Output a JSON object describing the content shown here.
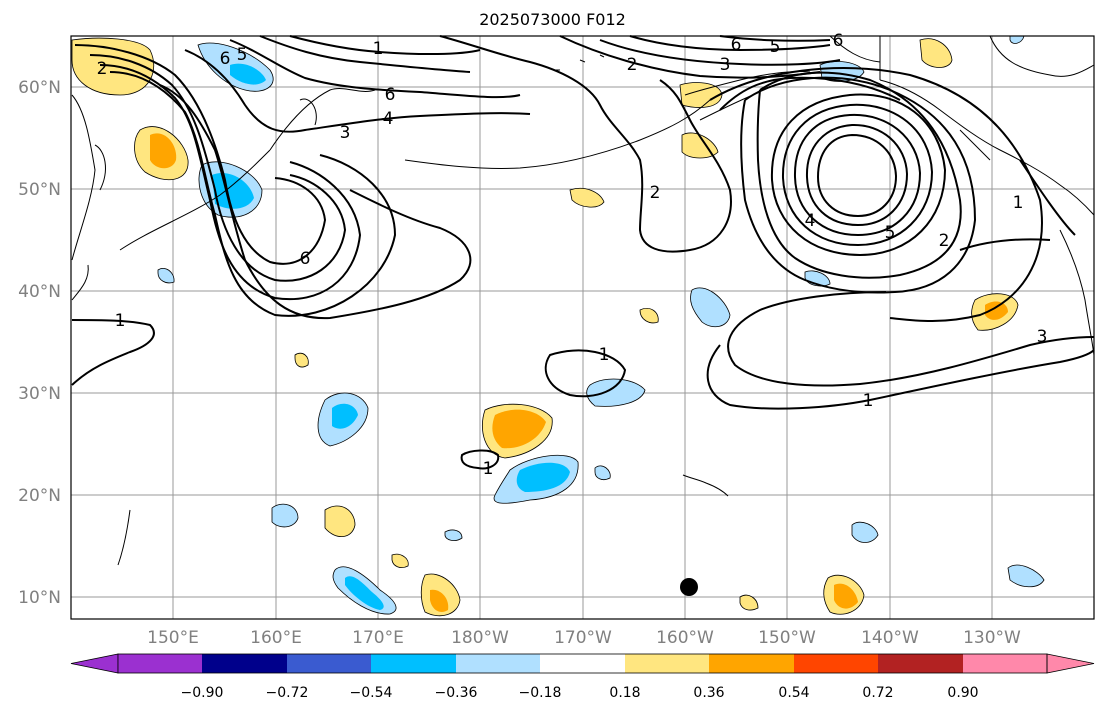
{
  "title": "2025073000 F012",
  "lat_labels": [
    "60°N",
    "50°N",
    "40°N",
    "30°N",
    "20°N",
    "10°N"
  ],
  "lon_labels": [
    "150°E",
    "160°E",
    "170°E",
    "180°W",
    "170°W",
    "160°W",
    "150°W",
    "140°W",
    "130°W"
  ],
  "colorbar": {
    "ticks": [
      "−0.90",
      "−0.72",
      "−0.54",
      "−0.36",
      "−0.18",
      "0.18",
      "0.36",
      "0.54",
      "0.72",
      "0.90"
    ],
    "colors": [
      "#9b30d0",
      "#00008b",
      "#3a5bd0",
      "#00bfff",
      "#b0e0ff",
      "#ffffff",
      "#ffe680",
      "#ffa500",
      "#ff4500",
      "#b22222",
      "#ff88aa"
    ]
  },
  "contour_labels": [
    "1",
    "1",
    "1",
    "1",
    "1",
    "1",
    "2",
    "2",
    "2",
    "2",
    "3",
    "3",
    "3",
    "4",
    "4",
    "5",
    "5",
    "5",
    "6",
    "6",
    "6",
    "6",
    "6"
  ],
  "marker": "black-dot"
}
